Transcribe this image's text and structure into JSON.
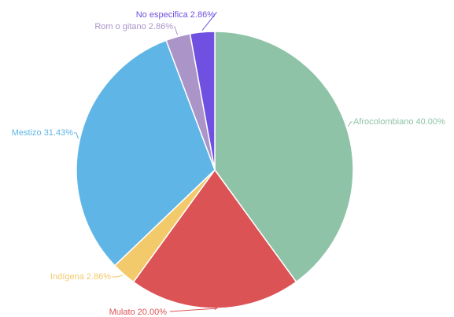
{
  "chart_data": {
    "type": "pie",
    "slices": [
      {
        "label": "Afrocolombiano",
        "value": 40.0,
        "display": "Afrocolombiano 40.00%",
        "color": "#8fc3a7"
      },
      {
        "label": "Mulato",
        "value": 20.0,
        "display": "Mulato 20.00%",
        "color": "#dc5356"
      },
      {
        "label": "Indígena",
        "value": 2.86,
        "display": "Indígena 2.86%",
        "color": "#f3ca6b"
      },
      {
        "label": "Mestizo",
        "value": 31.43,
        "display": "Mestizo 31.43%",
        "color": "#5fb6e6"
      },
      {
        "label": "Rom o gitano",
        "value": 2.86,
        "display": "Rom o gitano 2.86%",
        "color": "#ab94c8"
      },
      {
        "label": "No especifica",
        "value": 2.86,
        "display": "No especifica 2.86%",
        "color": "#6f50e0"
      }
    ],
    "start_angle": "12 o'clock",
    "direction": "clockwise"
  }
}
